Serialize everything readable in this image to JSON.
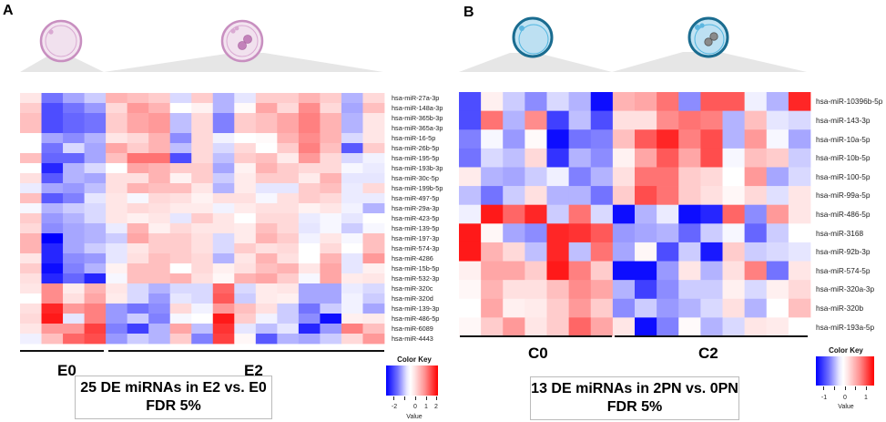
{
  "panels": {
    "A": {
      "letter": "A",
      "groups": [
        {
          "label": "E0",
          "color": "#4e1546"
        },
        {
          "label": "E2",
          "color": "#bd7fb4"
        }
      ],
      "bottom_groups": [
        "E0",
        "E2"
      ],
      "caption_line1": "25 DE miRNAs in E2 vs. E0",
      "caption_line2": "FDR 5%",
      "color_key": {
        "title": "Color Key",
        "ticks": [
          "-2",
          "0",
          "1",
          "2"
        ],
        "xlabel": "Value"
      },
      "rows": [
        "hsa-miR-27a-3p",
        "hsa-miR-148a-3p",
        "hsa-miR-365b-3p",
        "hsa-miR-365a-3p",
        "hsa-miR-16-5p",
        "hsa-miR-26b-5p",
        "hsa-miR-195-5p",
        "hsa-miR-193b-3p",
        "hsa-miR-30c-5p",
        "hsa-miR-199b-5p",
        "hsa-miR-497-5p",
        "hsa-miR-29a-3p",
        "hsa-miR-423-5p",
        "hsa-miR-139-5p",
        "hsa-miR-197-3p",
        "hsa-miR-574-3p",
        "hsa-miR-4286",
        "hsa-miR-15b-5p",
        "hsa-miR-532-3p",
        "hsa-miR-320c",
        "hsa-miR-320d",
        "hsa-miR-139-3p",
        "hsa-miR-486-5p",
        "hsa-miR-6089",
        "hsa-miR-4443"
      ]
    },
    "B": {
      "letter": "B",
      "groups": [
        {
          "label": "C0",
          "color": "#1a5f80"
        },
        {
          "label": "C2",
          "color": "#00b2ec"
        }
      ],
      "bottom_groups": [
        "C0",
        "C2"
      ],
      "caption_line1": "13 DE miRNAs in 2PN vs. 0PN",
      "caption_line2": "FDR 5%",
      "color_key": {
        "title": "Color Key",
        "ticks": [
          "-1",
          "0",
          "1"
        ],
        "xlabel": "Value"
      },
      "rows": [
        "hsa-miR-10396b-5p",
        "hsa-miR-143-3p",
        "hsa-miR-10a-5p",
        "hsa-miR-10b-5p",
        "hsa-miR-100-5p",
        "hsa-miR-99a-5p",
        "hsa-miR-486-5p",
        "hsa-miR-3168",
        "hsa-miR-92b-3p",
        "hsa-miR-574-5p",
        "hsa-miR-320a-3p",
        "hsa-miR-320b",
        "hsa-miR-193a-5p"
      ]
    }
  },
  "chart_data": [
    {
      "type": "heatmap",
      "title": "25 DE miRNAs in E2 vs. E0 (FDR 5%)",
      "column_groups": [
        {
          "name": "E0",
          "count": 4
        },
        {
          "name": "E2",
          "count": 13
        }
      ],
      "value_range": [
        -2.5,
        2.5
      ],
      "legend": "bottom-right",
      "normalized_values_note": "scaled to [-1,1] relative to color key extremes",
      "values": [
        [
          0.1,
          -0.55,
          -0.35,
          -0.2,
          0.3,
          0.25,
          0.2,
          -0.15,
          0.2,
          -0.3,
          -0.1,
          0.2,
          0.2,
          0.3,
          0.2,
          -0.3,
          0.15
        ],
        [
          0.2,
          -0.7,
          -0.55,
          -0.4,
          0.15,
          0.4,
          0.3,
          0,
          0.05,
          -0.3,
          0.02,
          0.35,
          0.15,
          0.45,
          0.15,
          -0.35,
          0.25
        ],
        [
          0.25,
          -0.7,
          -0.6,
          -0.55,
          0.2,
          0.35,
          0.4,
          -0.25,
          0.15,
          -0.5,
          0.2,
          0.25,
          0.35,
          0.5,
          0.3,
          -0.3,
          0.1
        ],
        [
          0.25,
          -0.7,
          -0.6,
          -0.55,
          0.2,
          0.35,
          0.4,
          -0.25,
          0.15,
          -0.5,
          0.2,
          0.25,
          0.35,
          0.5,
          0.3,
          -0.3,
          0.1
        ],
        [
          0,
          -0.35,
          -0.45,
          -0.3,
          0.1,
          0.15,
          0.3,
          -0.45,
          0.15,
          -0.05,
          0,
          0.02,
          0.3,
          0.45,
          0.3,
          -0.15,
          0.1
        ],
        [
          0,
          -0.55,
          -0.15,
          -0.35,
          0.35,
          0.2,
          0.3,
          -0.25,
          0.15,
          -0.15,
          0.15,
          0,
          0.2,
          0.5,
          0.25,
          -0.65,
          0.2
        ],
        [
          0.25,
          -0.6,
          -0.6,
          -0.35,
          0.25,
          0.55,
          0.55,
          -0.7,
          0.15,
          -0.25,
          0.2,
          0.25,
          0.08,
          0.4,
          0.15,
          -0.15,
          -0.05
        ],
        [
          0,
          -0.85,
          -0.3,
          -0.15,
          0,
          0.35,
          0.3,
          0.2,
          0.2,
          -0.35,
          0.05,
          0.3,
          0.2,
          0.15,
          0.15,
          -0.03,
          -0.08
        ],
        [
          0.12,
          -0.65,
          -0.3,
          -0.35,
          0.12,
          0.12,
          0.3,
          0.05,
          0.2,
          -0.2,
          0.08,
          0.2,
          0.2,
          0.08,
          0.3,
          -0.1,
          -0.1
        ],
        [
          -0.08,
          -0.35,
          -0.4,
          -0.25,
          0.12,
          0.3,
          0.25,
          0.25,
          0.1,
          -0.3,
          0.08,
          -0.1,
          -0.1,
          0.2,
          0.25,
          -0.08,
          0.15
        ],
        [
          0.25,
          -0.65,
          -0.5,
          -0.1,
          0.1,
          -0.03,
          0.15,
          0.12,
          0.05,
          0.12,
          0.12,
          -0.03,
          0.12,
          0.2,
          0.15,
          -0.08,
          -0.08
        ],
        [
          -0.03,
          -0.3,
          -0.2,
          -0.15,
          0.1,
          0.15,
          0.12,
          0.08,
          0.08,
          -0.05,
          0.08,
          0.12,
          0.12,
          0.05,
          0.1,
          -0.05,
          -0.3
        ],
        [
          0.2,
          -0.4,
          -0.3,
          -0.15,
          0.1,
          0.06,
          0.1,
          -0.1,
          0.2,
          0.1,
          0,
          0.15,
          0.15,
          -0.08,
          -0.03,
          -0.1,
          0
        ],
        [
          0.15,
          -0.45,
          -0.35,
          -0.3,
          -0.08,
          0.3,
          0.06,
          0.15,
          0.1,
          0.1,
          0.08,
          0.25,
          0.15,
          -0.1,
          -0.03,
          -0.2,
          -0.03
        ],
        [
          0.3,
          -1,
          -0.35,
          -0.3,
          -0.2,
          0.35,
          0.2,
          0.2,
          0.12,
          -0.15,
          0.08,
          0.3,
          0.2,
          -0.05,
          0.1,
          -0.03,
          0.25
        ],
        [
          0.3,
          -0.85,
          -0.35,
          -0.2,
          -0.1,
          0.1,
          0.2,
          0.2,
          0.12,
          -0.15,
          0.2,
          0.12,
          0.15,
          0,
          0.15,
          0,
          0.25
        ],
        [
          0.1,
          -0.85,
          -0.45,
          -0.4,
          -0.1,
          0.12,
          0.25,
          0.2,
          0.15,
          -0.3,
          0.1,
          0.3,
          0.12,
          0,
          0.3,
          -0.1,
          0.4
        ],
        [
          0.2,
          -0.95,
          -0.5,
          -0.3,
          0.05,
          0.25,
          0.25,
          0,
          0.15,
          0.06,
          0.12,
          0.25,
          0.3,
          0.1,
          0.35,
          -0.1,
          0.06
        ],
        [
          0.12,
          -0.85,
          -0.6,
          -0.85,
          -0.03,
          0.25,
          0.25,
          0.3,
          0.12,
          0.03,
          0.3,
          0.35,
          0.2,
          -0.03,
          0.35,
          0.08,
          0.1
        ],
        [
          0.1,
          0.45,
          0.08,
          0.3,
          0.1,
          -0.15,
          -0.3,
          -0.15,
          -0.15,
          0.6,
          -0.15,
          0.08,
          0.1,
          -0.35,
          -0.35,
          -0.08,
          -0.15
        ],
        [
          0,
          0.45,
          0.12,
          0.35,
          0.08,
          -0.15,
          -0.4,
          -0.1,
          -0.15,
          0.65,
          -0.2,
          0.08,
          0.06,
          -0.35,
          -0.35,
          -0.05,
          -0.2
        ],
        [
          0.12,
          0.85,
          0.4,
          0.5,
          -0.4,
          -0.55,
          -0.45,
          0.15,
          -0.05,
          0.4,
          0.25,
          0.12,
          -0.2,
          -0.55,
          -0.2,
          -0.05,
          -0.35
        ],
        [
          0.15,
          0.9,
          -0.1,
          0.5,
          -0.4,
          -0.2,
          -0.5,
          -0.03,
          0,
          0.9,
          0.2,
          -0.05,
          -0.2,
          -0.45,
          -0.95,
          0.06,
          0.08
        ],
        [
          0.1,
          0.4,
          0.4,
          0.75,
          -0.5,
          -0.75,
          -0.3,
          0.35,
          -0.25,
          0.8,
          -0.1,
          -0.25,
          -0.1,
          -0.85,
          -0.4,
          0.5,
          0.25
        ],
        [
          -0.06,
          0.25,
          0.6,
          0.7,
          -0.4,
          -0.2,
          -0.3,
          0.2,
          -0.5,
          0.75,
          0.03,
          -0.65,
          -0.3,
          -0.35,
          -0.2,
          0.15,
          0.4
        ]
      ]
    },
    {
      "type": "heatmap",
      "title": "13 DE miRNAs in 2PN vs. 0PN (FDR 5%)",
      "column_groups": [
        {
          "name": "C0",
          "count": 7
        },
        {
          "name": "C2",
          "count": 9
        }
      ],
      "value_range": [
        -1.5,
        1.5
      ],
      "legend": "bottom-right",
      "normalized_values_note": "scaled to [-1,1] relative to color key extremes",
      "values": [
        [
          -0.7,
          0.06,
          -0.2,
          -0.45,
          -0.15,
          -0.3,
          -0.95,
          0.3,
          0.35,
          0.55,
          -0.45,
          0.65,
          0.65,
          -0.06,
          -0.3,
          0.85
        ],
        [
          -0.7,
          0.55,
          -0.3,
          0.45,
          -0.75,
          -0.25,
          -0.7,
          0.12,
          0.12,
          0.45,
          0.55,
          0.5,
          -0.3,
          0.25,
          -0.1,
          -0.15
        ],
        [
          -0.5,
          -0.03,
          -0.4,
          0.02,
          -0.95,
          -0.55,
          -0.5,
          0.25,
          0.65,
          0.85,
          0.5,
          0.7,
          -0.3,
          0.4,
          -0.03,
          -0.35
        ],
        [
          -0.55,
          -0.15,
          -0.25,
          0.15,
          -0.8,
          -0.3,
          -0.45,
          0.05,
          0.35,
          0.65,
          0.35,
          0.7,
          -0.03,
          0.25,
          0.2,
          -0.2
        ],
        [
          0.08,
          -0.3,
          -0.35,
          -0.2,
          -0.06,
          -0.5,
          -0.3,
          0.12,
          0.55,
          0.55,
          0.2,
          0.15,
          0,
          0.4,
          -0.35,
          -0.15
        ],
        [
          -0.25,
          -0.55,
          -0.2,
          0.12,
          -0.3,
          -0.3,
          -0.55,
          0.2,
          0.7,
          0.55,
          0.2,
          0.12,
          0.03,
          0.15,
          -0.12,
          0.1
        ],
        [
          -0.06,
          0.9,
          0.6,
          0.85,
          -0.2,
          0.55,
          -0.15,
          -0.95,
          -0.3,
          -0.08,
          -0.95,
          -0.85,
          0.6,
          -0.45,
          0.4,
          0.1
        ],
        [
          0.9,
          0.03,
          -0.35,
          -0.45,
          0.85,
          0.8,
          0.65,
          -0.4,
          -0.35,
          -0.3,
          -0.6,
          -0.2,
          -0.03,
          -0.6,
          -0.2,
          0
        ],
        [
          0.9,
          0.3,
          0.15,
          -0.25,
          0.85,
          -0.25,
          0.55,
          -0.35,
          0.03,
          -0.7,
          -0.2,
          -0.9,
          0.2,
          -0.2,
          -0.15,
          -0.1
        ],
        [
          0.06,
          0.35,
          0.35,
          0.2,
          0.9,
          0.5,
          0.2,
          -0.95,
          -0.95,
          -0.4,
          0.1,
          -0.3,
          0.12,
          0.5,
          -0.55,
          0.1
        ],
        [
          0.03,
          0.3,
          0.12,
          0.12,
          0.25,
          0.45,
          0.35,
          -0.3,
          -0.75,
          -0.45,
          -0.2,
          -0.2,
          0.06,
          -0.15,
          0.06,
          0.15
        ],
        [
          0,
          0.35,
          0.06,
          0.08,
          0.2,
          0.4,
          0.2,
          -0.45,
          -0.2,
          -0.4,
          -0.3,
          -0.15,
          0.12,
          -0.3,
          0,
          0.25
        ],
        [
          0.03,
          0.2,
          0.4,
          0.1,
          0.2,
          0.6,
          0.35,
          0.1,
          -0.95,
          -0.5,
          0.02,
          -0.3,
          -0.15,
          0.1,
          0.08,
          0
        ]
      ]
    }
  ]
}
